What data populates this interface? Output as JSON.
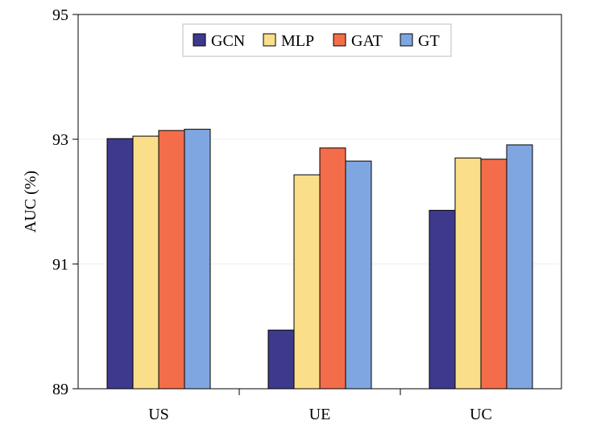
{
  "chart_data": {
    "type": "bar",
    "title": "",
    "xlabel": "",
    "ylabel": "AUC (%)",
    "ylim": [
      89,
      95
    ],
    "yticks": [
      "89",
      "91",
      "93",
      "95"
    ],
    "grid": true,
    "legend_position": "top",
    "categories": [
      "US",
      "UE",
      "UC"
    ],
    "series": [
      {
        "name": "GCN",
        "color": "#3d3a8e",
        "values": [
          93.01,
          89.94,
          91.86
        ]
      },
      {
        "name": "MLP",
        "color": "#fbde8a",
        "values": [
          93.05,
          92.43,
          92.7
        ]
      },
      {
        "name": "GAT",
        "color": "#f36d4a",
        "values": [
          93.14,
          92.86,
          92.68
        ]
      },
      {
        "name": "GT",
        "color": "#7fa6e0",
        "values": [
          93.16,
          92.65,
          92.91
        ]
      }
    ]
  }
}
